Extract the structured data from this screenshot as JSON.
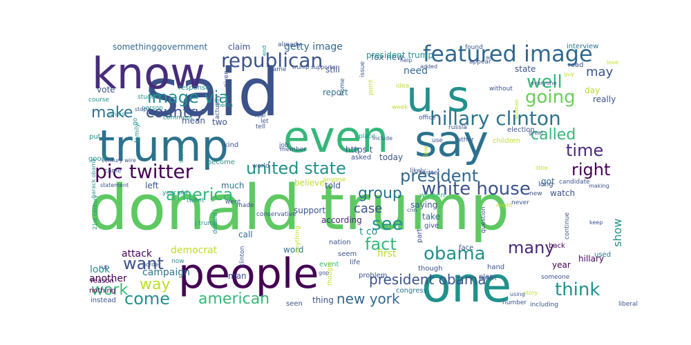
{
  "title": "word cloud",
  "words": [
    {
      "text": "donald trump",
      "color": "#5ec962"
    },
    {
      "text": "said",
      "color": "#3b528b"
    },
    {
      "text": "people",
      "color": "#440154"
    },
    {
      "text": "one",
      "color": "#21918c"
    },
    {
      "text": "trump",
      "color": "#2c728e"
    },
    {
      "text": "even",
      "color": "#35b779"
    },
    {
      "text": "say",
      "color": "#2c728e"
    },
    {
      "text": "know",
      "color": "#472d7b"
    },
    {
      "text": "u s",
      "color": "#21918c"
    },
    {
      "text": "featured image",
      "color": "#31688e"
    },
    {
      "text": "hillary clinton",
      "color": "#2c728e"
    },
    {
      "text": "pic twitter",
      "color": "#440154"
    },
    {
      "text": "white house",
      "color": "#3b528b"
    },
    {
      "text": "united state",
      "color": "#21918c"
    },
    {
      "text": "republican",
      "color": "#3b528b"
    },
    {
      "text": "image via",
      "color": "#21918c"
    },
    {
      "text": "country",
      "color": "#3b528b"
    },
    {
      "text": "president",
      "color": "#31688e"
    },
    {
      "text": "america",
      "color": "#35b779"
    },
    {
      "text": "think",
      "color": "#21918c"
    },
    {
      "text": "obama",
      "color": "#21918c"
    },
    {
      "text": "going",
      "color": "#6ccd5a"
    },
    {
      "text": "well",
      "color": "#35b779"
    },
    {
      "text": "called",
      "color": "#35b779"
    },
    {
      "text": "time",
      "color": "#482878"
    },
    {
      "text": "right",
      "color": "#440154"
    },
    {
      "text": "make",
      "color": "#2c728e"
    },
    {
      "text": "want",
      "color": "#3b528b"
    },
    {
      "text": "come",
      "color": "#21918c"
    },
    {
      "text": "american",
      "color": "#35b779"
    },
    {
      "text": "fact",
      "color": "#35b779"
    },
    {
      "text": "many",
      "color": "#482878"
    },
    {
      "text": "way",
      "color": "#bddf26"
    },
    {
      "text": "work",
      "color": "#35b779"
    },
    {
      "text": "new york",
      "color": "#31688e"
    },
    {
      "text": "see",
      "color": "#21918c"
    },
    {
      "text": "group",
      "color": "#2c728e"
    },
    {
      "text": "case",
      "color": "#3b528b"
    },
    {
      "text": "may",
      "color": "#3b528b"
    },
    {
      "text": "need",
      "color": "#31688e"
    },
    {
      "text": "democrat",
      "color": "#bddf26"
    },
    {
      "text": "president obama",
      "color": "#3b528b"
    },
    {
      "text": "show",
      "color": "#21918c"
    },
    {
      "text": "getty image",
      "color": "#31688e"
    },
    {
      "text": "president trump",
      "color": "#21918c"
    },
    {
      "text": "government",
      "color": "#31688e"
    },
    {
      "text": "something",
      "color": "#31688e"
    },
    {
      "text": "claim",
      "color": "#3b528b"
    },
    {
      "text": "fox new",
      "color": "#31688e"
    },
    {
      "text": "still",
      "color": "#3b528b"
    },
    {
      "text": "state",
      "color": "#3b528b"
    },
    {
      "text": "interview",
      "color": "#2c728e"
    },
    {
      "text": "https t",
      "color": "#3b528b"
    },
    {
      "text": "t co",
      "color": "#21918c"
    },
    {
      "text": "first",
      "color": "#b5de2b"
    },
    {
      "text": "attack",
      "color": "#440154"
    },
    {
      "text": "look",
      "color": "#21918c"
    },
    {
      "text": "another",
      "color": "#440154"
    },
    {
      "text": "campaign",
      "color": "#2c728e"
    },
    {
      "text": "according",
      "color": "#482878"
    },
    {
      "text": "told",
      "color": "#3b528b"
    },
    {
      "text": "saying",
      "color": "#3b528b"
    },
    {
      "text": "watch",
      "color": "#3b528b"
    },
    {
      "text": "got",
      "color": "#31688e"
    },
    {
      "text": "left",
      "color": "#3b528b"
    },
    {
      "text": "much",
      "color": "#2c728e"
    },
    {
      "text": "call",
      "color": "#31688e"
    },
    {
      "text": "believe",
      "color": "#bddf26"
    },
    {
      "text": "support",
      "color": "#3b528b"
    },
    {
      "text": "take",
      "color": "#31688e"
    },
    {
      "text": "word",
      "color": "#2c728e"
    },
    {
      "text": "vote",
      "color": "#3b528b"
    },
    {
      "text": "report",
      "color": "#2c728e"
    },
    {
      "text": "today",
      "color": "#3b528b"
    },
    {
      "text": "two",
      "color": "#3b528b"
    },
    {
      "text": "mean",
      "color": "#3b528b"
    },
    {
      "text": "really",
      "color": "#3b528b"
    },
    {
      "text": "day",
      "color": "#b5de2b"
    },
    {
      "text": "read",
      "color": "#3b528b"
    },
    {
      "text": "long",
      "color": "#3b528b"
    },
    {
      "text": "year",
      "color": "#440154"
    },
    {
      "text": "hillary",
      "color": "#440154"
    },
    {
      "text": "used",
      "color": "#2c728e"
    },
    {
      "text": "election",
      "color": "#3b528b"
    },
    {
      "text": "thing",
      "color": "#3b528b"
    },
    {
      "text": "man",
      "color": "#3b528b"
    },
    {
      "text": "event",
      "color": "#35b779"
    },
    {
      "text": "part",
      "color": "#3b528b"
    },
    {
      "text": "asked",
      "color": "#3b528b"
    },
    {
      "text": "children",
      "color": "#bddf26"
    },
    {
      "text": "women",
      "color": "#35b779"
    },
    {
      "text": "congress",
      "color": "#2c728e"
    },
    {
      "text": "give",
      "color": "#3b528b"
    },
    {
      "text": "face",
      "color": "#3b528b"
    },
    {
      "text": "plan",
      "color": "#3b528b"
    },
    {
      "text": "hand",
      "color": "#3b528b"
    },
    {
      "text": "back",
      "color": "#440154"
    },
    {
      "text": "nation",
      "color": "#3b528b"
    },
    {
      "text": "seem",
      "color": "#3b528b"
    },
    {
      "text": "life",
      "color": "#3b528b"
    },
    {
      "text": "though",
      "color": "#3b528b"
    },
    {
      "text": "problem",
      "color": "#3b528b"
    },
    {
      "text": "seen",
      "color": "#3b528b"
    },
    {
      "text": "nothing",
      "color": "#440154"
    },
    {
      "text": "instead",
      "color": "#3b528b"
    },
    {
      "text": "reason",
      "color": "#440154"
    },
    {
      "text": "course",
      "color": "#21918c"
    },
    {
      "text": "student",
      "color": "#21918c"
    },
    {
      "text": "response",
      "color": "#21918c"
    },
    {
      "text": "person",
      "color": "#21918c"
    },
    {
      "text": "comment",
      "color": "#21918c"
    },
    {
      "text": "media",
      "color": "#21918c"
    },
    {
      "text": "put",
      "color": "#21918c"
    },
    {
      "text": "good",
      "color": "#21918c"
    },
    {
      "text": "kind",
      "color": "#3b528b"
    },
    {
      "text": "become",
      "color": "#21918c"
    },
    {
      "text": "year old",
      "color": "#21918c"
    },
    {
      "text": "tweet",
      "color": "#21918c"
    },
    {
      "text": "came",
      "color": "#3b528b"
    },
    {
      "text": "went",
      "color": "#3b528b"
    },
    {
      "text": "made",
      "color": "#3b528b"
    },
    {
      "text": "21st century",
      "color": "#21918c"
    },
    {
      "text": "barack obama",
      "color": "#21918c"
    },
    {
      "text": "family",
      "color": "#21918c"
    },
    {
      "text": "conservative",
      "color": "#3b528b"
    },
    {
      "text": "world",
      "color": "#3b528b"
    },
    {
      "text": "anyone",
      "color": "#bddf26"
    },
    {
      "text": "actually",
      "color": "#3b528b"
    },
    {
      "text": "member",
      "color": "#3b528b"
    },
    {
      "text": "job",
      "color": "#3b528b"
    },
    {
      "text": "russia",
      "color": "#3b528b"
    },
    {
      "text": "office",
      "color": "#3b528b"
    },
    {
      "text": "use",
      "color": "#3b528b"
    },
    {
      "text": "home",
      "color": "#3b528b"
    },
    {
      "text": "issue",
      "color": "#3b528b"
    },
    {
      "text": "idea",
      "color": "#bddf26"
    },
    {
      "text": "week",
      "color": "#bddf26"
    },
    {
      "text": "point",
      "color": "#bddf26"
    },
    {
      "text": "name",
      "color": "#3b528b"
    },
    {
      "text": "tell",
      "color": "#3b528b"
    },
    {
      "text": "let",
      "color": "#3b528b"
    },
    {
      "text": "given",
      "color": "#3b528b"
    },
    {
      "text": "already",
      "color": "#3b528b"
    },
    {
      "text": "help",
      "color": "#3b528b"
    },
    {
      "text": "found",
      "color": "#3b528b"
    },
    {
      "text": "appear",
      "color": "#3b528b"
    },
    {
      "text": "woman",
      "color": "#bddf26"
    },
    {
      "text": "never",
      "color": "#3b528b"
    },
    {
      "text": "new",
      "color": "#3b528b"
    },
    {
      "text": "continue",
      "color": "#3b528b"
    },
    {
      "text": "question",
      "color": "#3b528b"
    },
    {
      "text": "thought",
      "color": "#bddf26"
    },
    {
      "text": "anything",
      "color": "#bddf26"
    },
    {
      "text": "likely",
      "color": "#3b528b"
    },
    {
      "text": "someone",
      "color": "#3b528b"
    },
    {
      "text": "including",
      "color": "#3b528b"
    },
    {
      "text": "number",
      "color": "#3b528b"
    },
    {
      "text": "clinton",
      "color": "#3b528b"
    },
    {
      "text": "candidate",
      "color": "#3b528b"
    },
    {
      "text": "liberal",
      "color": "#3b528b"
    },
    {
      "text": "rather",
      "color": "#3b528b"
    },
    {
      "text": "twitter",
      "color": "#3b528b"
    },
    {
      "text": "law",
      "color": "#bddf26"
    },
    {
      "text": "without",
      "color": "#3b528b"
    },
    {
      "text": "trump supporter",
      "color": "#3b528b"
    },
    {
      "text": "added",
      "color": "#3b528b"
    },
    {
      "text": "century wire",
      "color": "#3b528b"
    },
    {
      "text": "real",
      "color": "#3b528b"
    },
    {
      "text": "include",
      "color": "#3b528b"
    },
    {
      "text": "cnn",
      "color": "#3b528b"
    },
    {
      "text": "keep",
      "color": "#3b528b"
    },
    {
      "text": "making",
      "color": "#3b528b"
    },
    {
      "text": "little",
      "color": "#bddf26"
    },
    {
      "text": "great",
      "color": "#3b528b"
    },
    {
      "text": "might",
      "color": "#bddf26"
    },
    {
      "text": "everyone",
      "color": "#3b528b"
    },
    {
      "text": "effort",
      "color": "#3b528b"
    },
    {
      "text": "story",
      "color": "#bddf26"
    },
    {
      "text": "using",
      "color": "#3b528b"
    },
    {
      "text": "statement",
      "color": "#3b528b"
    },
    {
      "text": "others",
      "color": "#21918c"
    },
    {
      "text": "border",
      "color": "#3b528b"
    },
    {
      "text": "gop",
      "color": "#3b528b"
    },
    {
      "text": "run",
      "color": "#3b528b"
    },
    {
      "text": "now",
      "color": "#21918c"
    },
    {
      "text": "go",
      "color": "#21918c"
    },
    {
      "text": "end",
      "color": "#21918c"
    },
    {
      "text": "stand",
      "color": "#21918c"
    },
    {
      "text": "donald j",
      "color": "#21918c"
    },
    {
      "text": "j trump",
      "color": "#21918c"
    },
    {
      "text": "place",
      "color": "#21918c"
    },
    {
      "text": "love",
      "color": "#bddf26"
    },
    {
      "text": "stop",
      "color": "#3b528b"
    },
    {
      "text": "guy",
      "color": "#bddf26"
    },
    {
      "text": "ad",
      "color": "#3b528b"
    },
    {
      "text": "wrote",
      "color": "#bddf26"
    }
  ]
}
